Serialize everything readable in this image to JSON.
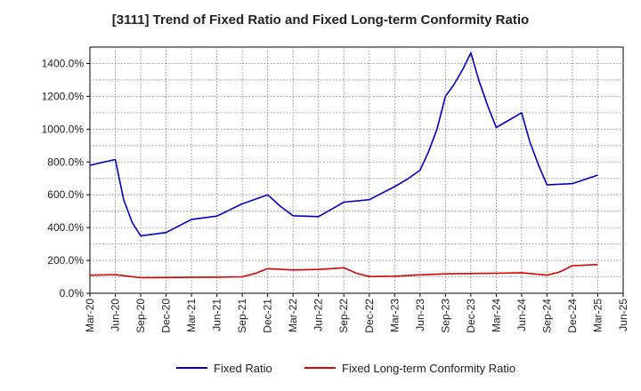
{
  "chart_data": {
    "type": "line",
    "title": "[3111]  Trend of Fixed Ratio and Fixed Long-term Conformity Ratio",
    "xlabel": "",
    "ylabel": "",
    "x": [
      "Mar-20",
      "Jun-20",
      "Sep-20",
      "Dec-20",
      "Mar-21",
      "Jun-21",
      "Sep-21",
      "Dec-21",
      "Mar-22",
      "Jun-22",
      "Sep-22",
      "Dec-22",
      "Mar-23",
      "Jun-23",
      "Sep-23",
      "Dec-23",
      "Mar-24",
      "Jun-24",
      "Sep-24",
      "Dec-24",
      "Mar-25",
      "Jun-25"
    ],
    "ylim": [
      0,
      1500
    ],
    "yticks": [
      "0.0%",
      "200.0%",
      "400.0%",
      "600.0%",
      "800.0%",
      "1000.0%",
      "1200.0%",
      "1400.0%"
    ],
    "grid": true,
    "legend_position": "bottom",
    "series": [
      {
        "name": "Fixed Ratio",
        "color": "#0000cc",
        "points": [
          [
            0,
            780
          ],
          [
            1,
            815
          ],
          [
            1.33,
            570
          ],
          [
            1.67,
            430
          ],
          [
            2,
            350
          ],
          [
            3,
            370
          ],
          [
            3.5,
            410
          ],
          [
            4,
            450
          ],
          [
            5,
            470
          ],
          [
            6,
            545
          ],
          [
            7,
            600
          ],
          [
            7.5,
            530
          ],
          [
            8,
            472
          ],
          [
            9,
            467
          ],
          [
            10,
            555
          ],
          [
            11,
            570
          ],
          [
            12,
            650
          ],
          [
            12.5,
            695
          ],
          [
            13,
            750
          ],
          [
            13.33,
            860
          ],
          [
            13.67,
            1000
          ],
          [
            14,
            1200
          ],
          [
            14.33,
            1270
          ],
          [
            14.67,
            1360
          ],
          [
            15,
            1465
          ],
          [
            15.33,
            1290
          ],
          [
            15.67,
            1140
          ],
          [
            16,
            1010
          ],
          [
            17,
            1100
          ],
          [
            17.33,
            920
          ],
          [
            17.67,
            780
          ],
          [
            18,
            660
          ],
          [
            19,
            668
          ],
          [
            20,
            720
          ]
        ]
      },
      {
        "name": "Fixed Long-term Conformity Ratio",
        "color": "#dd0000",
        "points": [
          [
            0,
            110
          ],
          [
            1,
            113
          ],
          [
            2,
            95
          ],
          [
            3,
            96
          ],
          [
            4,
            97
          ],
          [
            5,
            98
          ],
          [
            6,
            100
          ],
          [
            6.5,
            120
          ],
          [
            7,
            150
          ],
          [
            8,
            142
          ],
          [
            9,
            145
          ],
          [
            10,
            155
          ],
          [
            10.5,
            122
          ],
          [
            11,
            102
          ],
          [
            12,
            104
          ],
          [
            13,
            112
          ],
          [
            14,
            118
          ],
          [
            15,
            120
          ],
          [
            16,
            122
          ],
          [
            17,
            125
          ],
          [
            18,
            110
          ],
          [
            18.5,
            130
          ],
          [
            19,
            168
          ],
          [
            20,
            175
          ]
        ]
      }
    ]
  }
}
